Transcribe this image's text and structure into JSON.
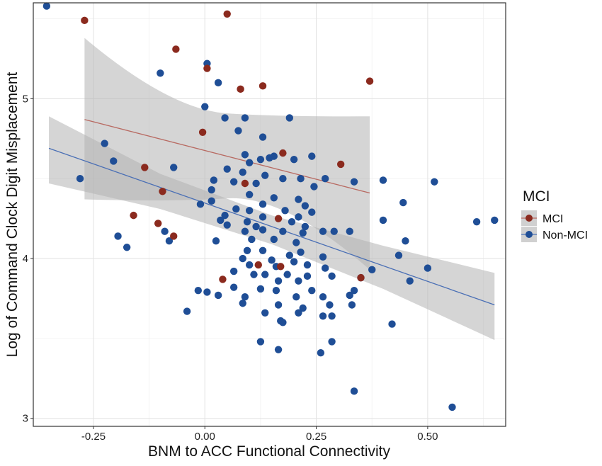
{
  "chart_data": {
    "type": "scatter",
    "xlabel": "BNM to ACC Functional Connectivity",
    "ylabel": "Log of Command Clock Digit Misplacement",
    "xlim": [
      -0.385,
      0.675
    ],
    "ylim": [
      2.95,
      5.6
    ],
    "xticks": [
      -0.25,
      0.0,
      0.25,
      0.5
    ],
    "xtick_labels": [
      "-0.25",
      "0.00",
      "0.25",
      "0.50"
    ],
    "yticks": [
      3,
      4,
      5
    ],
    "ytick_labels": [
      "3",
      "4",
      "5"
    ],
    "grid": true,
    "legend": {
      "title": "MCI",
      "position": "right",
      "entries": [
        {
          "label": "MCI",
          "color": "#8b2a1e"
        },
        {
          "label": "Non-MCI",
          "color": "#1f4e96"
        }
      ]
    },
    "series": [
      {
        "name": "MCI",
        "color": "#8b2a1e",
        "line_color": "#b86a62",
        "fit": {
          "x": [
            -0.27,
            0.37
          ],
          "y": [
            4.87,
            4.41
          ]
        },
        "band": {
          "x": [
            -0.27,
            0.37
          ],
          "upper_y": [
            5.38,
            4.89
          ],
          "lower_y": [
            4.37,
            3.93
          ]
        },
        "points": [
          {
            "x": -0.27,
            "y": 5.49
          },
          {
            "x": 0.05,
            "y": 5.53
          },
          {
            "x": -0.065,
            "y": 5.31
          },
          {
            "x": 0.005,
            "y": 5.19
          },
          {
            "x": 0.08,
            "y": 5.06
          },
          {
            "x": 0.13,
            "y": 5.08
          },
          {
            "x": 0.37,
            "y": 5.11
          },
          {
            "x": -0.005,
            "y": 4.79
          },
          {
            "x": 0.175,
            "y": 4.66
          },
          {
            "x": 0.305,
            "y": 4.59
          },
          {
            "x": -0.135,
            "y": 4.57
          },
          {
            "x": 0.09,
            "y": 4.47
          },
          {
            "x": -0.095,
            "y": 4.42
          },
          {
            "x": -0.16,
            "y": 4.27
          },
          {
            "x": -0.105,
            "y": 4.22
          },
          {
            "x": -0.07,
            "y": 4.14
          },
          {
            "x": 0.165,
            "y": 4.25
          },
          {
            "x": 0.12,
            "y": 3.96
          },
          {
            "x": 0.17,
            "y": 3.95
          },
          {
            "x": 0.04,
            "y": 3.87
          },
          {
            "x": 0.35,
            "y": 3.88
          }
        ]
      },
      {
        "name": "Non-MCI",
        "color": "#1f4e96",
        "line_color": "#4a6fb5",
        "fit": {
          "x": [
            -0.35,
            0.65
          ],
          "y": [
            4.69,
            3.71
          ]
        },
        "band": {
          "x": [
            -0.35,
            -0.1,
            0.15,
            0.4,
            0.65
          ],
          "upper_y": [
            4.89,
            4.53,
            4.27,
            4.08,
            3.91
          ],
          "lower_y": [
            4.47,
            4.31,
            4.09,
            3.81,
            3.49
          ]
        },
        "points": [
          {
            "x": -0.355,
            "y": 5.58
          },
          {
            "x": 0.005,
            "y": 5.22
          },
          {
            "x": -0.1,
            "y": 5.16
          },
          {
            "x": 0.03,
            "y": 5.1
          },
          {
            "x": 0.0,
            "y": 4.95
          },
          {
            "x": 0.045,
            "y": 4.88
          },
          {
            "x": 0.09,
            "y": 4.88
          },
          {
            "x": 0.19,
            "y": 4.88
          },
          {
            "x": 0.075,
            "y": 4.8
          },
          {
            "x": 0.13,
            "y": 4.76
          },
          {
            "x": -0.225,
            "y": 4.72
          },
          {
            "x": 0.09,
            "y": 4.65
          },
          {
            "x": 0.125,
            "y": 4.62
          },
          {
            "x": 0.155,
            "y": 4.64
          },
          {
            "x": 0.24,
            "y": 4.64
          },
          {
            "x": 0.1,
            "y": 4.6
          },
          {
            "x": -0.205,
            "y": 4.61
          },
          {
            "x": 0.145,
            "y": 4.63
          },
          {
            "x": -0.07,
            "y": 4.57
          },
          {
            "x": 0.05,
            "y": 4.56
          },
          {
            "x": 0.2,
            "y": 4.62
          },
          {
            "x": 0.085,
            "y": 4.54
          },
          {
            "x": 0.135,
            "y": 4.52
          },
          {
            "x": 0.175,
            "y": 4.5
          },
          {
            "x": 0.215,
            "y": 4.5
          },
          {
            "x": 0.27,
            "y": 4.5
          },
          {
            "x": -0.28,
            "y": 4.5
          },
          {
            "x": 0.02,
            "y": 4.49
          },
          {
            "x": 0.065,
            "y": 4.48
          },
          {
            "x": 0.115,
            "y": 4.47
          },
          {
            "x": 0.335,
            "y": 4.48
          },
          {
            "x": 0.4,
            "y": 4.49
          },
          {
            "x": 0.515,
            "y": 4.48
          },
          {
            "x": 0.245,
            "y": 4.45
          },
          {
            "x": 0.015,
            "y": 4.43
          },
          {
            "x": 0.1,
            "y": 4.4
          },
          {
            "x": 0.155,
            "y": 4.38
          },
          {
            "x": 0.21,
            "y": 4.37
          },
          {
            "x": 0.015,
            "y": 4.36
          },
          {
            "x": -0.01,
            "y": 4.34
          },
          {
            "x": 0.13,
            "y": 4.34
          },
          {
            "x": 0.225,
            "y": 4.33
          },
          {
            "x": 0.445,
            "y": 4.35
          },
          {
            "x": 0.07,
            "y": 4.31
          },
          {
            "x": 0.1,
            "y": 4.3
          },
          {
            "x": 0.18,
            "y": 4.3
          },
          {
            "x": 0.24,
            "y": 4.29
          },
          {
            "x": 0.045,
            "y": 4.27
          },
          {
            "x": 0.13,
            "y": 4.26
          },
          {
            "x": 0.21,
            "y": 4.26
          },
          {
            "x": 0.035,
            "y": 4.24
          },
          {
            "x": 0.095,
            "y": 4.23
          },
          {
            "x": 0.195,
            "y": 4.23
          },
          {
            "x": 0.05,
            "y": 4.21
          },
          {
            "x": 0.115,
            "y": 4.2
          },
          {
            "x": 0.225,
            "y": 4.2
          },
          {
            "x": 0.4,
            "y": 4.24
          },
          {
            "x": 0.61,
            "y": 4.23
          },
          {
            "x": 0.65,
            "y": 4.24
          },
          {
            "x": 0.09,
            "y": 4.17
          },
          {
            "x": 0.13,
            "y": 4.18
          },
          {
            "x": 0.175,
            "y": 4.17
          },
          {
            "x": 0.22,
            "y": 4.16
          },
          {
            "x": 0.265,
            "y": 4.17
          },
          {
            "x": 0.29,
            "y": 4.17
          },
          {
            "x": 0.325,
            "y": 4.17
          },
          {
            "x": -0.195,
            "y": 4.14
          },
          {
            "x": -0.09,
            "y": 4.17
          },
          {
            "x": -0.08,
            "y": 4.11
          },
          {
            "x": 0.025,
            "y": 4.11
          },
          {
            "x": 0.105,
            "y": 4.12
          },
          {
            "x": 0.155,
            "y": 4.12
          },
          {
            "x": 0.205,
            "y": 4.1
          },
          {
            "x": 0.45,
            "y": 4.11
          },
          {
            "x": -0.175,
            "y": 4.07
          },
          {
            "x": 0.095,
            "y": 4.05
          },
          {
            "x": 0.13,
            "y": 4.05
          },
          {
            "x": 0.215,
            "y": 4.04
          },
          {
            "x": 0.19,
            "y": 4.02
          },
          {
            "x": 0.265,
            "y": 4.01
          },
          {
            "x": 0.435,
            "y": 4.02
          },
          {
            "x": 0.085,
            "y": 4.0
          },
          {
            "x": 0.15,
            "y": 3.99
          },
          {
            "x": 0.2,
            "y": 3.98
          },
          {
            "x": 0.1,
            "y": 3.96
          },
          {
            "x": 0.23,
            "y": 3.96
          },
          {
            "x": 0.16,
            "y": 3.95
          },
          {
            "x": 0.27,
            "y": 3.94
          },
          {
            "x": 0.375,
            "y": 3.93
          },
          {
            "x": 0.5,
            "y": 3.94
          },
          {
            "x": 0.065,
            "y": 3.92
          },
          {
            "x": 0.11,
            "y": 3.9
          },
          {
            "x": 0.135,
            "y": 3.9
          },
          {
            "x": 0.185,
            "y": 3.9
          },
          {
            "x": 0.23,
            "y": 3.89
          },
          {
            "x": 0.285,
            "y": 3.89
          },
          {
            "x": 0.35,
            "y": 3.88
          },
          {
            "x": 0.165,
            "y": 3.86
          },
          {
            "x": 0.21,
            "y": 3.86
          },
          {
            "x": 0.46,
            "y": 3.86
          },
          {
            "x": 0.065,
            "y": 3.82
          },
          {
            "x": 0.125,
            "y": 3.81
          },
          {
            "x": 0.16,
            "y": 3.8
          },
          {
            "x": 0.24,
            "y": 3.8
          },
          {
            "x": 0.335,
            "y": 3.8
          },
          {
            "x": -0.015,
            "y": 3.8
          },
          {
            "x": 0.005,
            "y": 3.79
          },
          {
            "x": 0.03,
            "y": 3.77
          },
          {
            "x": 0.09,
            "y": 3.76
          },
          {
            "x": 0.205,
            "y": 3.76
          },
          {
            "x": 0.265,
            "y": 3.76
          },
          {
            "x": 0.325,
            "y": 3.77
          },
          {
            "x": 0.085,
            "y": 3.72
          },
          {
            "x": 0.165,
            "y": 3.71
          },
          {
            "x": 0.28,
            "y": 3.71
          },
          {
            "x": 0.33,
            "y": 3.71
          },
          {
            "x": 0.22,
            "y": 3.69
          },
          {
            "x": -0.04,
            "y": 3.67
          },
          {
            "x": 0.135,
            "y": 3.66
          },
          {
            "x": 0.21,
            "y": 3.66
          },
          {
            "x": 0.265,
            "y": 3.64
          },
          {
            "x": 0.285,
            "y": 3.64
          },
          {
            "x": 0.17,
            "y": 3.61
          },
          {
            "x": 0.175,
            "y": 3.6
          },
          {
            "x": 0.42,
            "y": 3.59
          },
          {
            "x": 0.125,
            "y": 3.48
          },
          {
            "x": 0.285,
            "y": 3.48
          },
          {
            "x": 0.165,
            "y": 3.43
          },
          {
            "x": 0.26,
            "y": 3.41
          },
          {
            "x": 0.335,
            "y": 3.17
          },
          {
            "x": 0.555,
            "y": 3.07
          }
        ]
      }
    ]
  }
}
